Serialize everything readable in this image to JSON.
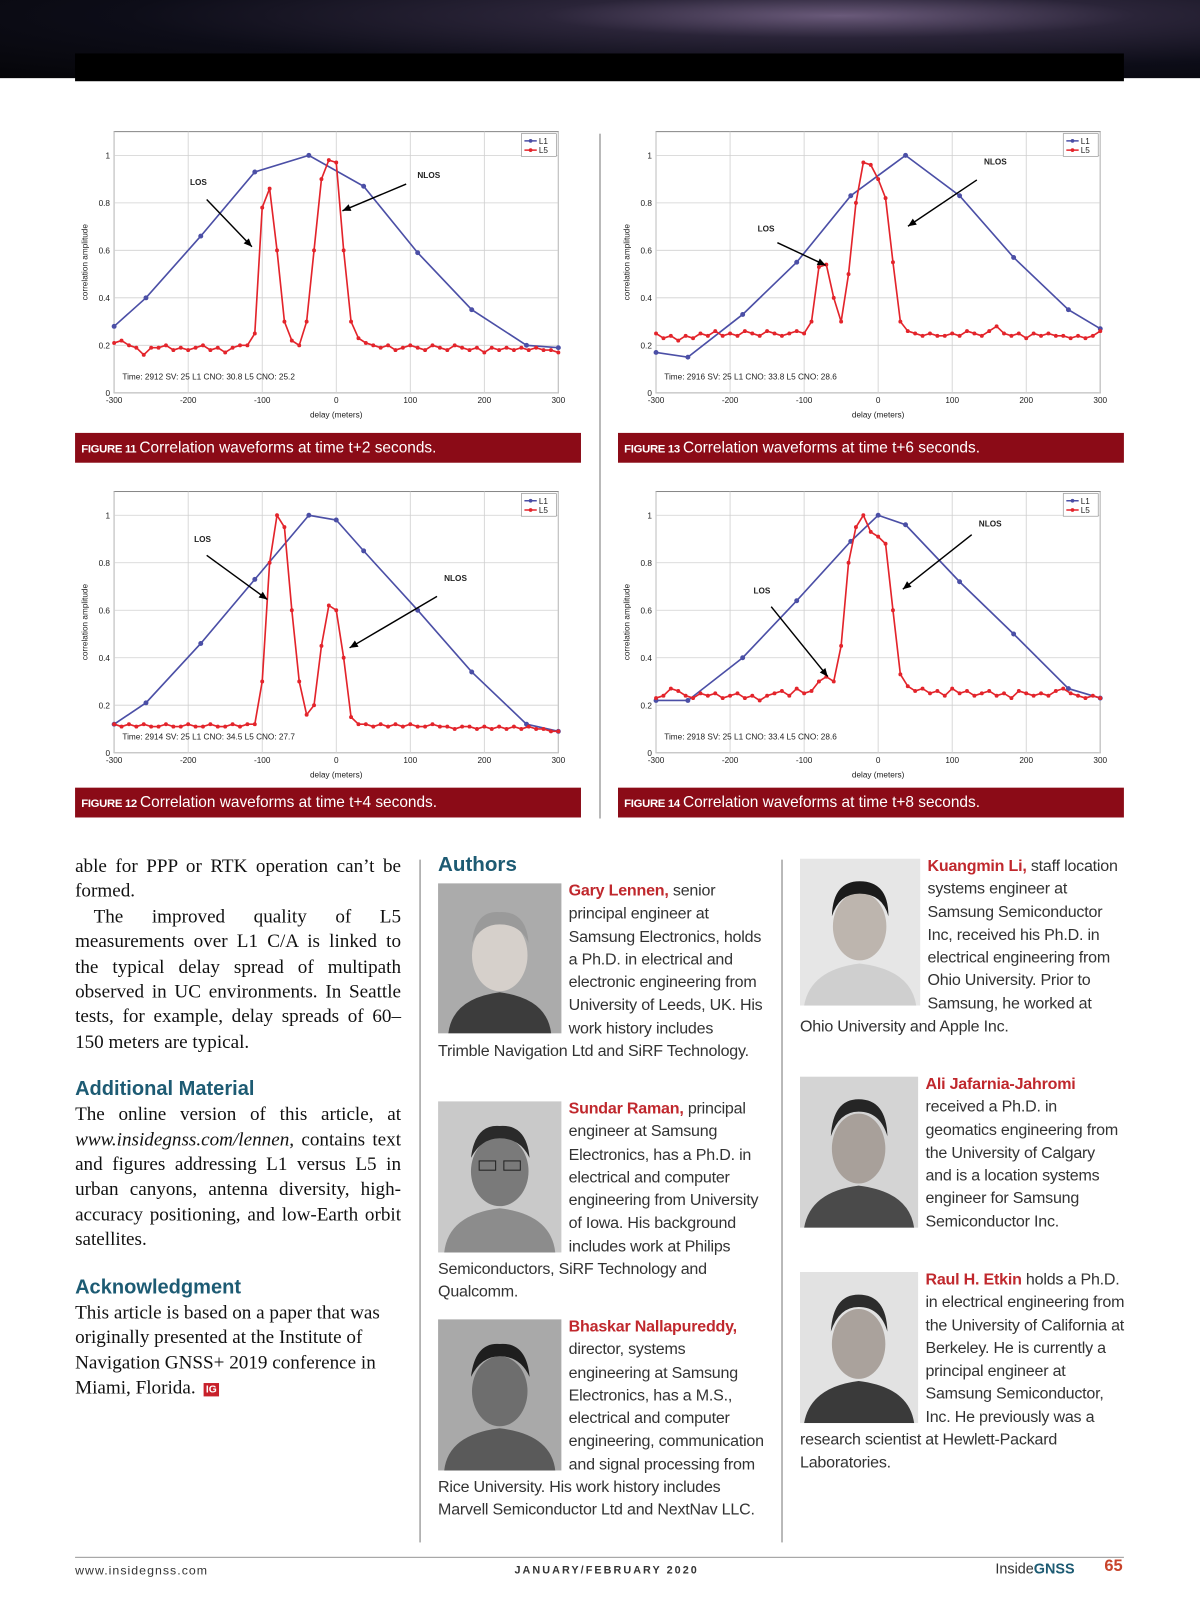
{
  "chart_data": [
    {
      "type": "line",
      "figure_label": "FIGURE 11",
      "caption": "Correlation waveforms at time t+2 seconds.",
      "xlabel": "delay (meters)",
      "ylabel": "correlation amplitude",
      "note": "Time: 2912 SV: 25 L1 CNO: 30.8 L5 CNO: 25.2",
      "annotations": [
        "LOS",
        "NLOS"
      ],
      "xlim": [
        -300,
        300
      ],
      "ylim": [
        0,
        1.1
      ],
      "xticks": [
        -300,
        -200,
        -100,
        0,
        100,
        200,
        300
      ],
      "yticks": [
        0,
        0.2,
        0.4,
        0.6,
        0.8,
        1
      ],
      "grid": true,
      "legend": "upper right",
      "series": [
        {
          "name": "L1",
          "color": "#4b4fa6",
          "x": [
            -300,
            -257,
            -183,
            -110,
            -37,
            37,
            110,
            183,
            257,
            300
          ],
          "values": [
            0.28,
            0.4,
            0.66,
            0.93,
            1.0,
            0.87,
            0.59,
            0.35,
            0.2,
            0.19
          ]
        },
        {
          "name": "L5",
          "color": "#e3242b",
          "x": [
            -300,
            -290,
            -280,
            -270,
            -260,
            -250,
            -240,
            -230,
            -220,
            -210,
            -200,
            -190,
            -180,
            -170,
            -160,
            -150,
            -140,
            -130,
            -120,
            -110,
            -100,
            -90,
            -80,
            -70,
            -60,
            -50,
            -40,
            -30,
            -20,
            -10,
            0,
            10,
            20,
            30,
            40,
            50,
            60,
            70,
            80,
            90,
            100,
            110,
            120,
            130,
            140,
            150,
            160,
            170,
            180,
            190,
            200,
            210,
            220,
            230,
            240,
            250,
            260,
            270,
            280,
            290,
            300
          ],
          "values": [
            0.21,
            0.22,
            0.2,
            0.19,
            0.16,
            0.19,
            0.19,
            0.2,
            0.18,
            0.19,
            0.18,
            0.19,
            0.2,
            0.18,
            0.19,
            0.17,
            0.19,
            0.2,
            0.2,
            0.25,
            0.78,
            0.86,
            0.6,
            0.3,
            0.22,
            0.2,
            0.3,
            0.6,
            0.9,
            0.98,
            0.97,
            0.6,
            0.3,
            0.23,
            0.21,
            0.2,
            0.19,
            0.2,
            0.18,
            0.19,
            0.2,
            0.19,
            0.18,
            0.2,
            0.19,
            0.18,
            0.2,
            0.19,
            0.18,
            0.19,
            0.17,
            0.19,
            0.18,
            0.19,
            0.18,
            0.19,
            0.18,
            0.19,
            0.18,
            0.18,
            0.17
          ]
        }
      ]
    },
    {
      "type": "line",
      "figure_label": "FIGURE 12",
      "caption": "Correlation waveforms at time t+4 seconds.",
      "xlabel": "delay (meters)",
      "ylabel": "correlation amplitude",
      "note": "Time: 2914 SV: 25 L1 CNO: 34.5 L5 CNO: 27.7",
      "annotations": [
        "LOS",
        "NLOS"
      ],
      "xlim": [
        -300,
        300
      ],
      "ylim": [
        0,
        1.1
      ],
      "xticks": [
        -300,
        -200,
        -100,
        0,
        100,
        200,
        300
      ],
      "yticks": [
        0,
        0.2,
        0.4,
        0.6,
        0.8,
        1
      ],
      "grid": true,
      "legend": "upper right",
      "series": [
        {
          "name": "L1",
          "color": "#4b4fa6",
          "x": [
            -300,
            -257,
            -183,
            -110,
            -37,
            0,
            37,
            110,
            183,
            257,
            300
          ],
          "values": [
            0.12,
            0.21,
            0.46,
            0.73,
            1.0,
            0.98,
            0.85,
            0.6,
            0.34,
            0.12,
            0.09
          ]
        },
        {
          "name": "L5",
          "color": "#e3242b",
          "x": [
            -300,
            -290,
            -280,
            -270,
            -260,
            -250,
            -240,
            -230,
            -220,
            -210,
            -200,
            -190,
            -180,
            -170,
            -160,
            -150,
            -140,
            -130,
            -120,
            -110,
            -100,
            -90,
            -80,
            -70,
            -60,
            -50,
            -40,
            -30,
            -20,
            -10,
            0,
            10,
            20,
            30,
            40,
            50,
            60,
            70,
            80,
            90,
            100,
            110,
            120,
            130,
            140,
            150,
            160,
            170,
            180,
            190,
            200,
            210,
            220,
            230,
            240,
            250,
            260,
            270,
            280,
            290,
            300
          ],
          "values": [
            0.12,
            0.11,
            0.12,
            0.11,
            0.12,
            0.11,
            0.11,
            0.12,
            0.11,
            0.11,
            0.12,
            0.11,
            0.11,
            0.12,
            0.11,
            0.11,
            0.12,
            0.11,
            0.12,
            0.12,
            0.3,
            0.8,
            1.0,
            0.95,
            0.6,
            0.3,
            0.16,
            0.2,
            0.45,
            0.62,
            0.6,
            0.4,
            0.15,
            0.12,
            0.12,
            0.11,
            0.12,
            0.11,
            0.12,
            0.11,
            0.12,
            0.11,
            0.11,
            0.12,
            0.11,
            0.11,
            0.1,
            0.11,
            0.11,
            0.1,
            0.11,
            0.1,
            0.11,
            0.1,
            0.11,
            0.1,
            0.11,
            0.1,
            0.1,
            0.09,
            0.09
          ]
        }
      ]
    },
    {
      "type": "line",
      "figure_label": "FIGURE 13",
      "caption": "Correlation waveforms at time t+6 seconds.",
      "xlabel": "delay (meters)",
      "ylabel": "correlation amplitude",
      "note": "Time: 2916 SV: 25 L1 CNO: 33.8 L5 CNO: 28.6",
      "annotations": [
        "LOS",
        "NLOS"
      ],
      "xlim": [
        -300,
        300
      ],
      "ylim": [
        0,
        1.1
      ],
      "xticks": [
        -300,
        -200,
        -100,
        0,
        100,
        200,
        300
      ],
      "yticks": [
        0,
        0.2,
        0.4,
        0.6,
        0.8,
        1
      ],
      "grid": true,
      "legend": "upper right",
      "series": [
        {
          "name": "L1",
          "color": "#4b4fa6",
          "x": [
            -300,
            -257,
            -183,
            -110,
            -37,
            37,
            110,
            183,
            257,
            300
          ],
          "values": [
            0.17,
            0.15,
            0.33,
            0.55,
            0.83,
            1.0,
            0.83,
            0.57,
            0.35,
            0.27
          ]
        },
        {
          "name": "L5",
          "color": "#e3242b",
          "x": [
            -300,
            -290,
            -280,
            -270,
            -260,
            -250,
            -240,
            -230,
            -220,
            -210,
            -200,
            -190,
            -180,
            -170,
            -160,
            -150,
            -140,
            -130,
            -120,
            -110,
            -100,
            -90,
            -80,
            -70,
            -60,
            -50,
            -40,
            -30,
            -20,
            -10,
            0,
            10,
            20,
            30,
            40,
            50,
            60,
            70,
            80,
            90,
            100,
            110,
            120,
            130,
            140,
            150,
            160,
            170,
            180,
            190,
            200,
            210,
            220,
            230,
            240,
            250,
            260,
            270,
            280,
            290,
            300
          ],
          "values": [
            0.25,
            0.23,
            0.24,
            0.22,
            0.24,
            0.23,
            0.25,
            0.24,
            0.26,
            0.24,
            0.25,
            0.24,
            0.26,
            0.25,
            0.24,
            0.26,
            0.25,
            0.24,
            0.25,
            0.26,
            0.25,
            0.3,
            0.53,
            0.54,
            0.4,
            0.3,
            0.5,
            0.8,
            0.97,
            0.96,
            0.9,
            0.82,
            0.55,
            0.3,
            0.26,
            0.25,
            0.24,
            0.25,
            0.24,
            0.24,
            0.25,
            0.24,
            0.26,
            0.25,
            0.24,
            0.26,
            0.28,
            0.25,
            0.24,
            0.25,
            0.23,
            0.25,
            0.24,
            0.25,
            0.24,
            0.24,
            0.23,
            0.24,
            0.23,
            0.24,
            0.26
          ]
        }
      ]
    },
    {
      "type": "line",
      "figure_label": "FIGURE 14",
      "caption": "Correlation waveforms at time t+8 seconds.",
      "xlabel": "delay (meters)",
      "ylabel": "correlation amplitude",
      "note": "Time: 2918 SV: 25 L1 CNO: 33.4 L5 CNO: 28.6",
      "annotations": [
        "LOS",
        "NLOS"
      ],
      "xlim": [
        -300,
        300
      ],
      "ylim": [
        0,
        1.1
      ],
      "xticks": [
        -300,
        -200,
        -100,
        0,
        100,
        200,
        300
      ],
      "yticks": [
        0,
        0.2,
        0.4,
        0.6,
        0.8,
        1
      ],
      "grid": true,
      "legend": "upper right",
      "series": [
        {
          "name": "L1",
          "color": "#4b4fa6",
          "x": [
            -300,
            -257,
            -183,
            -110,
            -37,
            0,
            37,
            110,
            183,
            257,
            300
          ],
          "values": [
            0.22,
            0.22,
            0.4,
            0.64,
            0.89,
            1.0,
            0.96,
            0.72,
            0.5,
            0.27,
            0.23
          ]
        },
        {
          "name": "L5",
          "color": "#e3242b",
          "x": [
            -300,
            -290,
            -280,
            -270,
            -260,
            -250,
            -240,
            -230,
            -220,
            -210,
            -200,
            -190,
            -180,
            -170,
            -160,
            -150,
            -140,
            -130,
            -120,
            -110,
            -100,
            -90,
            -80,
            -70,
            -60,
            -50,
            -40,
            -30,
            -20,
            -10,
            0,
            10,
            20,
            30,
            40,
            50,
            60,
            70,
            80,
            90,
            100,
            110,
            120,
            130,
            140,
            150,
            160,
            170,
            180,
            190,
            200,
            210,
            220,
            230,
            240,
            250,
            260,
            270,
            280,
            290,
            300
          ],
          "values": [
            0.23,
            0.24,
            0.27,
            0.26,
            0.24,
            0.23,
            0.25,
            0.24,
            0.25,
            0.23,
            0.24,
            0.25,
            0.23,
            0.24,
            0.22,
            0.24,
            0.25,
            0.26,
            0.24,
            0.27,
            0.25,
            0.26,
            0.3,
            0.32,
            0.3,
            0.45,
            0.8,
            0.95,
            1.0,
            0.93,
            0.91,
            0.88,
            0.6,
            0.33,
            0.28,
            0.26,
            0.27,
            0.25,
            0.26,
            0.24,
            0.27,
            0.25,
            0.26,
            0.24,
            0.25,
            0.26,
            0.24,
            0.25,
            0.23,
            0.26,
            0.25,
            0.24,
            0.25,
            0.24,
            0.26,
            0.27,
            0.25,
            0.24,
            0.23,
            0.24,
            0.23
          ]
        }
      ]
    }
  ],
  "article": {
    "p1": "able for PPP or RTK operation can’t be formed.",
    "p2": "The improved quality of L5 measurements over L1 C/A is linked to the typical delay spread of multipath observed in UC environments. In Seattle tests, for example, delay spreads of 60–150 meters are typical.",
    "h1": "Additional Material",
    "p3_before": "The online version of this article, at",
    "p3_url": "www.insidegnss.com/lennen,",
    "p3_after": "contains text and figures addressing L1 versus L5 in urban canyons, antenna diversity, high-accuracy positioning, and low-Earth orbit satellites.",
    "h2": "Acknowledgment",
    "p4": "This article is based on a paper that was originally presented at the Institute of Navigation GNSS+ 2019 conference in Miami, Florida.",
    "end_mark": "IG"
  },
  "authors": {
    "heading": "Authors",
    "list": [
      {
        "name": "Gary Lennen,",
        "bio": "senior principal engineer at Samsung Electronics, holds a Ph.D. in electrical and electronic engineering from University of Leeds, UK. His work history includes Trimble Navigation Ltd and SiRF Technology."
      },
      {
        "name": "Sundar Raman,",
        "bio": "principal engineer at Samsung Electronics, has a Ph.D. in electrical and computer engineering from University of Iowa. His background includes work at Philips Semiconductors, SiRF Technology and Qualcomm."
      },
      {
        "name": "Bhaskar Nallapureddy,",
        "bio": "director, systems engineering at Samsung Electronics, has a M.S., electrical and computer engineering, communication and signal processing from Rice University. His work history includes Marvell Semiconductor Ltd and NextNav LLC."
      },
      {
        "name": "Kuangmin Li,",
        "bio": "staff location systems engineer at Samsung Semiconductor Inc, received his Ph.D. in electrical engineering from Ohio University. Prior to Samsung, he worked at Ohio University and Apple Inc."
      },
      {
        "name": "Ali Jafarnia-Jahromi",
        "bio": "received a Ph.D. in geomatics engineering from the University of Calgary and is a location systems engineer for Samsung Semiconductor Inc."
      },
      {
        "name": "Raul H. Etkin",
        "bio": "holds a Ph.D. in electrical engineering from the University of California at Berkeley. He is currently a principal engineer at Samsung Semiconductor, Inc. He previously was a research scientist at Hewlett-Packard Laboratories."
      }
    ]
  },
  "footer": {
    "url": "www.insidegnss.com",
    "issue": "JANUARY/FEBRUARY 2020",
    "brand_prefix": "Inside",
    "brand": "GNSS",
    "page": 65
  }
}
